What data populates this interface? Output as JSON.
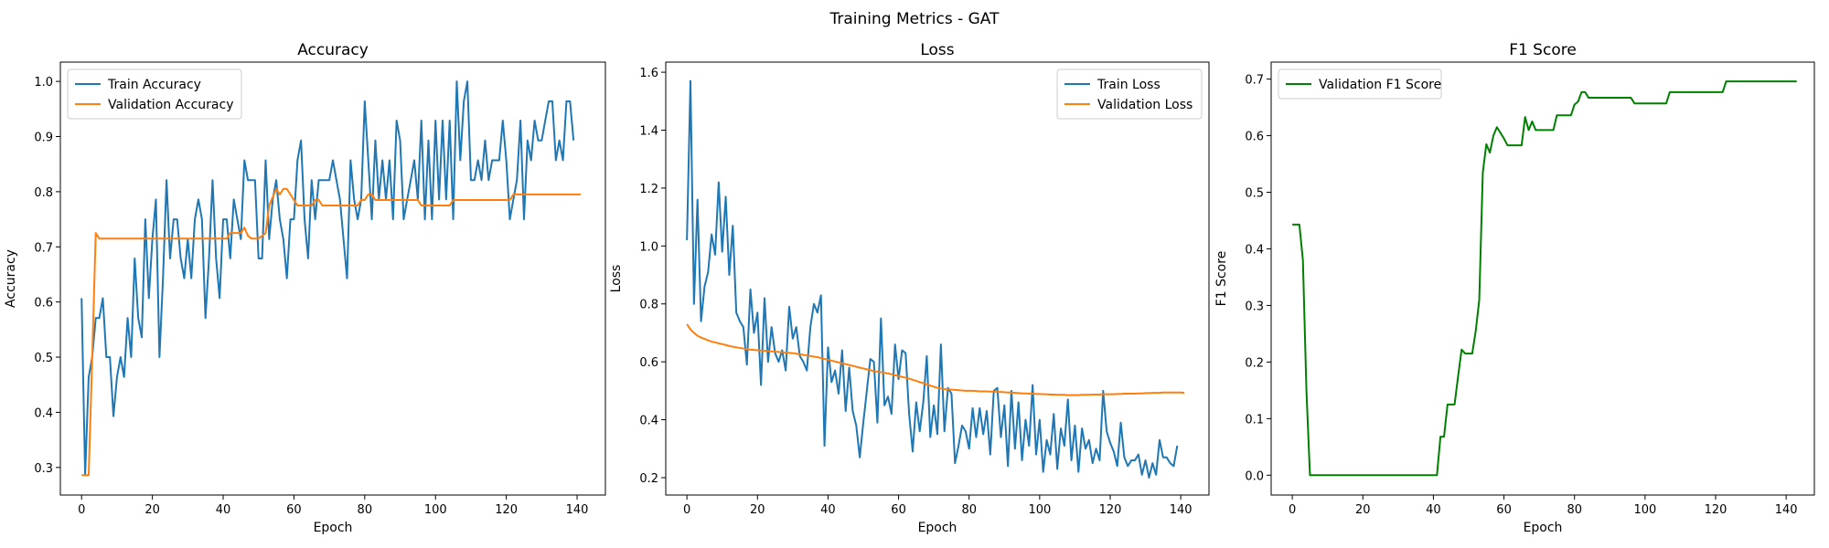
{
  "figure": {
    "suptitle": "Training Metrics - GAT"
  },
  "chart_data": [
    {
      "type": "line",
      "title": "Accuracy",
      "xlabel": "Epoch",
      "ylabel": "Accuracy",
      "xlim": [
        -6,
        148
      ],
      "ylim": [
        0.25,
        1.035
      ],
      "xticks": [
        0,
        20,
        40,
        60,
        80,
        100,
        120,
        140
      ],
      "yticks": [
        0.3,
        0.4,
        0.5,
        0.6,
        0.7,
        0.8,
        0.9,
        1.0
      ],
      "grid": false,
      "legend_position": "top-left",
      "series": [
        {
          "name": "Train Accuracy",
          "color": "#1f77b4",
          "values": [
            0.607,
            0.286,
            0.464,
            0.5,
            0.571,
            0.571,
            0.607,
            0.5,
            0.5,
            0.393,
            0.464,
            0.5,
            0.464,
            0.571,
            0.5,
            0.679,
            0.571,
            0.536,
            0.75,
            0.607,
            0.714,
            0.786,
            0.5,
            0.643,
            0.821,
            0.679,
            0.75,
            0.75,
            0.679,
            0.643,
            0.714,
            0.643,
            0.75,
            0.786,
            0.75,
            0.571,
            0.679,
            0.821,
            0.679,
            0.607,
            0.75,
            0.75,
            0.679,
            0.786,
            0.75,
            0.714,
            0.857,
            0.821,
            0.821,
            0.821,
            0.679,
            0.679,
            0.857,
            0.714,
            0.786,
            0.821,
            0.75,
            0.714,
            0.643,
            0.75,
            0.75,
            0.857,
            0.893,
            0.75,
            0.679,
            0.821,
            0.75,
            0.821,
            0.821,
            0.821,
            0.821,
            0.857,
            0.821,
            0.786,
            0.714,
            0.643,
            0.857,
            0.786,
            0.75,
            0.786,
            0.964,
            0.857,
            0.75,
            0.893,
            0.786,
            0.857,
            0.786,
            0.857,
            0.75,
            0.929,
            0.893,
            0.75,
            0.786,
            0.821,
            0.857,
            0.786,
            0.929,
            0.75,
            0.893,
            0.75,
            0.929,
            0.786,
            0.929,
            0.786,
            0.929,
            0.75,
            1.0,
            0.857,
            0.964,
            1.0,
            0.821,
            0.821,
            0.857,
            0.821,
            0.893,
            0.821,
            0.857,
            0.857,
            0.857,
            0.929,
            0.857,
            0.75,
            0.786,
            0.821,
            0.929,
            0.75,
            0.893,
            0.857,
            0.929,
            0.893,
            0.893,
            0.929,
            0.964,
            0.964,
            0.857,
            0.893,
            0.857,
            0.964,
            0.964,
            0.893
          ]
        },
        {
          "name": "Validation Accuracy",
          "color": "#ff7f0e",
          "values": [
            0.286,
            0.286,
            0.286,
            0.5,
            0.725,
            0.715,
            0.715,
            0.715,
            0.715,
            0.715,
            0.715,
            0.715,
            0.715,
            0.715,
            0.715,
            0.715,
            0.715,
            0.715,
            0.715,
            0.715,
            0.715,
            0.715,
            0.715,
            0.715,
            0.715,
            0.715,
            0.715,
            0.715,
            0.715,
            0.715,
            0.715,
            0.715,
            0.715,
            0.715,
            0.715,
            0.715,
            0.715,
            0.715,
            0.715,
            0.715,
            0.715,
            0.715,
            0.725,
            0.725,
            0.725,
            0.725,
            0.735,
            0.72,
            0.715,
            0.715,
            0.715,
            0.72,
            0.725,
            0.775,
            0.79,
            0.805,
            0.795,
            0.805,
            0.805,
            0.795,
            0.785,
            0.775,
            0.775,
            0.775,
            0.775,
            0.775,
            0.785,
            0.785,
            0.775,
            0.775,
            0.775,
            0.775,
            0.775,
            0.775,
            0.775,
            0.775,
            0.775,
            0.775,
            0.775,
            0.785,
            0.785,
            0.795,
            0.795,
            0.785,
            0.785,
            0.785,
            0.785,
            0.785,
            0.785,
            0.785,
            0.785,
            0.785,
            0.785,
            0.785,
            0.785,
            0.785,
            0.775,
            0.775,
            0.775,
            0.775,
            0.775,
            0.775,
            0.775,
            0.775,
            0.775,
            0.785,
            0.785,
            0.785,
            0.785,
            0.785,
            0.785,
            0.785,
            0.785,
            0.785,
            0.785,
            0.785,
            0.785,
            0.785,
            0.785,
            0.785,
            0.785,
            0.785,
            0.795,
            0.795,
            0.795,
            0.795,
            0.795,
            0.795,
            0.795,
            0.795,
            0.795,
            0.795,
            0.795,
            0.795,
            0.795,
            0.795,
            0.795,
            0.795,
            0.795,
            0.795,
            0.795,
            0.795
          ]
        }
      ]
    },
    {
      "type": "line",
      "title": "Loss",
      "xlabel": "Epoch",
      "ylabel": "Loss",
      "xlim": [
        -6,
        148
      ],
      "ylim": [
        0.14,
        1.635
      ],
      "xticks": [
        0,
        20,
        40,
        60,
        80,
        100,
        120,
        140
      ],
      "yticks": [
        0.2,
        0.4,
        0.6,
        0.8,
        1.0,
        1.2,
        1.4,
        1.6
      ],
      "grid": false,
      "legend_position": "top-right",
      "series": [
        {
          "name": "Train Loss",
          "color": "#1f77b4",
          "values": [
            1.02,
            1.57,
            0.8,
            1.16,
            0.74,
            0.86,
            0.91,
            1.04,
            0.97,
            1.22,
            0.98,
            1.17,
            0.9,
            1.07,
            0.77,
            0.74,
            0.72,
            0.59,
            0.85,
            0.7,
            0.77,
            0.52,
            0.82,
            0.6,
            0.72,
            0.63,
            0.6,
            0.64,
            0.57,
            0.79,
            0.68,
            0.72,
            0.62,
            0.6,
            0.57,
            0.72,
            0.8,
            0.77,
            0.83,
            0.31,
            0.65,
            0.53,
            0.57,
            0.49,
            0.64,
            0.43,
            0.58,
            0.43,
            0.38,
            0.27,
            0.39,
            0.5,
            0.61,
            0.6,
            0.39,
            0.75,
            0.45,
            0.48,
            0.42,
            0.66,
            0.54,
            0.64,
            0.63,
            0.42,
            0.29,
            0.46,
            0.36,
            0.46,
            0.62,
            0.34,
            0.45,
            0.35,
            0.66,
            0.36,
            0.51,
            0.49,
            0.25,
            0.31,
            0.38,
            0.36,
            0.3,
            0.44,
            0.34,
            0.44,
            0.35,
            0.43,
            0.28,
            0.5,
            0.51,
            0.34,
            0.45,
            0.24,
            0.5,
            0.3,
            0.46,
            0.26,
            0.4,
            0.31,
            0.52,
            0.28,
            0.4,
            0.22,
            0.33,
            0.28,
            0.42,
            0.23,
            0.37,
            0.31,
            0.47,
            0.26,
            0.38,
            0.22,
            0.37,
            0.3,
            0.33,
            0.25,
            0.3,
            0.26,
            0.5,
            0.36,
            0.32,
            0.29,
            0.24,
            0.39,
            0.27,
            0.24,
            0.26,
            0.26,
            0.28,
            0.21,
            0.26,
            0.2,
            0.25,
            0.21,
            0.33,
            0.27,
            0.27,
            0.25,
            0.24,
            0.31
          ]
        },
        {
          "name": "Validation Loss",
          "color": "#ff7f0e",
          "values": [
            0.73,
            0.712,
            0.7,
            0.69,
            0.684,
            0.679,
            0.674,
            0.67,
            0.667,
            0.664,
            0.661,
            0.658,
            0.655,
            0.652,
            0.65,
            0.648,
            0.646,
            0.644,
            0.642,
            0.641,
            0.64,
            0.639,
            0.638,
            0.637,
            0.636,
            0.635,
            0.634,
            0.633,
            0.632,
            0.631,
            0.63,
            0.628,
            0.626,
            0.624,
            0.622,
            0.62,
            0.618,
            0.616,
            0.613,
            0.61,
            0.607,
            0.604,
            0.601,
            0.598,
            0.595,
            0.592,
            0.589,
            0.586,
            0.583,
            0.58,
            0.577,
            0.574,
            0.571,
            0.568,
            0.566,
            0.564,
            0.562,
            0.56,
            0.557,
            0.554,
            0.551,
            0.548,
            0.545,
            0.542,
            0.538,
            0.534,
            0.53,
            0.526,
            0.522,
            0.518,
            0.514,
            0.51,
            0.508,
            0.506,
            0.505,
            0.504,
            0.503,
            0.502,
            0.501,
            0.5,
            0.5,
            0.5,
            0.499,
            0.498,
            0.498,
            0.498,
            0.497,
            0.497,
            0.496,
            0.496,
            0.495,
            0.494,
            0.494,
            0.493,
            0.492,
            0.491,
            0.491,
            0.49,
            0.49,
            0.489,
            0.489,
            0.488,
            0.488,
            0.487,
            0.487,
            0.486,
            0.486,
            0.486,
            0.485,
            0.485,
            0.485,
            0.485,
            0.486,
            0.486,
            0.486,
            0.487,
            0.487,
            0.487,
            0.488,
            0.488,
            0.488,
            0.488,
            0.489,
            0.489,
            0.49,
            0.49,
            0.49,
            0.49,
            0.491,
            0.491,
            0.492,
            0.492,
            0.493,
            0.493,
            0.493,
            0.494,
            0.494,
            0.494,
            0.494,
            0.494,
            0.494,
            0.493
          ]
        }
      ]
    },
    {
      "type": "line",
      "title": "F1 Score",
      "xlabel": "Epoch",
      "ylabel": "F1 Score",
      "xlim": [
        -6,
        148
      ],
      "ylim": [
        -0.035,
        0.73
      ],
      "xticks": [
        0,
        20,
        40,
        60,
        80,
        100,
        120,
        140
      ],
      "yticks": [
        0.0,
        0.1,
        0.2,
        0.3,
        0.4,
        0.5,
        0.6,
        0.7
      ],
      "grid": false,
      "legend_position": "top-left",
      "series": [
        {
          "name": "Validation F1 Score",
          "color": "#008000",
          "values": [
            0.443,
            0.443,
            0.443,
            0.38,
            0.15,
            0.0,
            0.0,
            0.0,
            0.0,
            0.0,
            0.0,
            0.0,
            0.0,
            0.0,
            0.0,
            0.0,
            0.0,
            0.0,
            0.0,
            0.0,
            0.0,
            0.0,
            0.0,
            0.0,
            0.0,
            0.0,
            0.0,
            0.0,
            0.0,
            0.0,
            0.0,
            0.0,
            0.0,
            0.0,
            0.0,
            0.0,
            0.0,
            0.0,
            0.0,
            0.0,
            0.0,
            0.0,
            0.068,
            0.068,
            0.125,
            0.125,
            0.125,
            0.175,
            0.222,
            0.215,
            0.215,
            0.215,
            0.255,
            0.31,
            0.535,
            0.585,
            0.57,
            0.6,
            0.615,
            0.605,
            0.595,
            0.583,
            0.583,
            0.583,
            0.583,
            0.583,
            0.633,
            0.61,
            0.625,
            0.61,
            0.61,
            0.61,
            0.61,
            0.61,
            0.61,
            0.636,
            0.636,
            0.636,
            0.636,
            0.636,
            0.655,
            0.66,
            0.677,
            0.677,
            0.667,
            0.667,
            0.667,
            0.667,
            0.667,
            0.667,
            0.667,
            0.667,
            0.667,
            0.667,
            0.667,
            0.667,
            0.667,
            0.657,
            0.657,
            0.657,
            0.657,
            0.657,
            0.657,
            0.657,
            0.657,
            0.657,
            0.657,
            0.677,
            0.677,
            0.677,
            0.677,
            0.677,
            0.677,
            0.677,
            0.677,
            0.677,
            0.677,
            0.677,
            0.677,
            0.677,
            0.677,
            0.677,
            0.677,
            0.696,
            0.696,
            0.696,
            0.696,
            0.696,
            0.696,
            0.696,
            0.696,
            0.696,
            0.696,
            0.696,
            0.696,
            0.696,
            0.696,
            0.696,
            0.696,
            0.696,
            0.696,
            0.696,
            0.696,
            0.696
          ]
        }
      ]
    }
  ]
}
